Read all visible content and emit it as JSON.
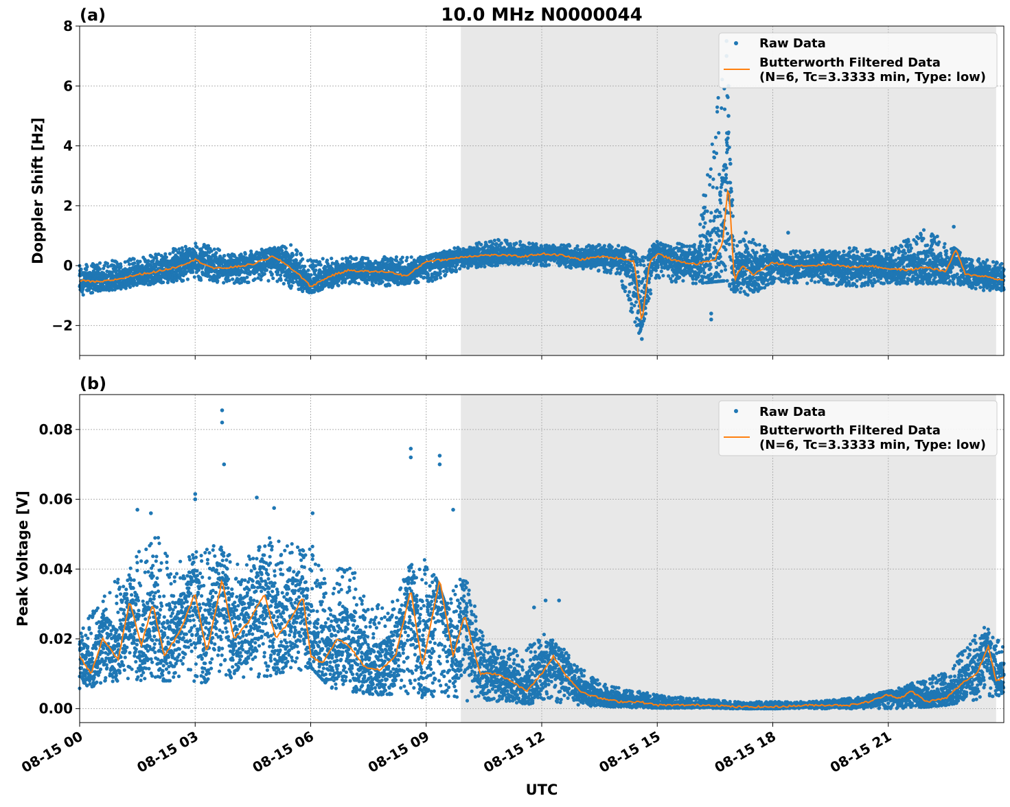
{
  "chart_data": [
    {
      "type": "scatter",
      "panel_label": "(a)",
      "title": "10.0 MHz N0000044",
      "ylabel": "Doppler Shift [Hz]",
      "xlabel": "",
      "xlim_hours": [
        0,
        24
      ],
      "ylim": [
        -3,
        8
      ],
      "yticks": [
        -2,
        0,
        2,
        4,
        6,
        8
      ],
      "ytick_labels": [
        "−2",
        "0",
        "2",
        "4",
        "6",
        "8"
      ],
      "grid": true,
      "legend_position": "top-right",
      "shaded_region_hours": [
        9.9,
        23.8
      ],
      "series": [
        {
          "name": "Raw Data",
          "style": "points",
          "color": "#1f77b4",
          "envelope_hours": [
            0,
            1,
            2,
            3,
            4,
            5,
            5.5,
            6,
            7,
            8,
            9,
            10,
            11,
            12,
            13,
            14,
            14.5,
            15,
            16,
            16.8,
            17,
            17.5,
            18,
            19,
            20,
            21,
            22,
            23,
            24
          ],
          "envelope_low": [
            -1.0,
            -0.8,
            -0.6,
            -0.5,
            -0.6,
            -0.5,
            -0.8,
            -0.9,
            -0.6,
            -0.7,
            -0.6,
            -0.1,
            0.0,
            0.0,
            -0.1,
            -0.3,
            -2.4,
            -0.5,
            -0.6,
            -0.5,
            -1.0,
            -1.0,
            -0.6,
            -0.6,
            -0.7,
            -0.7,
            -0.6,
            -0.7,
            -1.0
          ],
          "envelope_high": [
            0.0,
            0.2,
            0.4,
            0.8,
            0.4,
            0.6,
            0.7,
            0.2,
            0.3,
            0.3,
            0.3,
            0.7,
            0.9,
            0.7,
            0.7,
            0.7,
            0.4,
            0.9,
            0.7,
            7.5,
            0.9,
            1.0,
            0.5,
            0.5,
            0.6,
            0.5,
            1.3,
            0.3,
            0.1
          ],
          "outliers": [
            {
              "x": 14.6,
              "y": -2.45
            },
            {
              "x": 16.8,
              "y": 7.5
            },
            {
              "x": 16.8,
              "y": 7.0
            },
            {
              "x": 16.85,
              "y": 6.0
            },
            {
              "x": 16.85,
              "y": 5.0
            },
            {
              "x": 16.8,
              "y": 4.2
            },
            {
              "x": 16.9,
              "y": 3.4
            },
            {
              "x": 16.4,
              "y": -1.6
            },
            {
              "x": 16.4,
              "y": -1.8
            },
            {
              "x": 17.3,
              "y": 1.1
            },
            {
              "x": 18.4,
              "y": 1.1
            },
            {
              "x": 22.7,
              "y": 1.3
            }
          ]
        },
        {
          "name": "Butterworth Filtered Data\n(N=6, Tc=3.3333 min, Type: low)",
          "style": "line",
          "color": "#ff7f0e",
          "x_hours": [
            0,
            0.5,
            1,
            1.5,
            2,
            2.5,
            3,
            3.5,
            4,
            4.5,
            5,
            5.3,
            5.7,
            6,
            6.5,
            7,
            7.5,
            8,
            8.5,
            9,
            9.5,
            10,
            10.5,
            11,
            11.5,
            12,
            12.5,
            13,
            13.5,
            14,
            14.4,
            14.6,
            14.8,
            15,
            15.5,
            16,
            16.5,
            16.7,
            16.85,
            17,
            17.2,
            17.5,
            18,
            18.5,
            19,
            19.5,
            20,
            20.5,
            21,
            21.5,
            22,
            22.5,
            22.75,
            23,
            23.5,
            24
          ],
          "y": [
            -0.5,
            -0.55,
            -0.45,
            -0.3,
            -0.2,
            -0.05,
            0.2,
            -0.1,
            -0.05,
            0.05,
            0.3,
            0.1,
            -0.3,
            -0.7,
            -0.35,
            -0.15,
            -0.2,
            -0.2,
            -0.35,
            0.15,
            0.2,
            0.3,
            0.35,
            0.35,
            0.3,
            0.4,
            0.35,
            0.2,
            0.3,
            0.25,
            0.15,
            -1.9,
            0.1,
            0.4,
            0.15,
            0.05,
            0.2,
            0.8,
            2.8,
            -0.5,
            0.0,
            -0.3,
            0.1,
            0.0,
            0.0,
            0.05,
            -0.05,
            0.0,
            -0.1,
            -0.15,
            -0.05,
            -0.2,
            0.55,
            -0.3,
            -0.35,
            -0.5
          ]
        }
      ]
    },
    {
      "type": "scatter",
      "panel_label": "(b)",
      "title": "",
      "ylabel": "Peak Voltage [V]",
      "xlabel": "UTC",
      "xlim_hours": [
        0,
        24
      ],
      "xticks_hours": [
        0,
        3,
        6,
        9,
        12,
        15,
        18,
        21
      ],
      "xtick_labels": [
        "08-15 00",
        "08-15 03",
        "08-15 06",
        "08-15 09",
        "08-15 12",
        "08-15 15",
        "08-15 18",
        "08-15 21"
      ],
      "ylim": [
        -0.004,
        0.09
      ],
      "yticks": [
        0.0,
        0.02,
        0.04,
        0.06,
        0.08
      ],
      "ytick_labels": [
        "0.00",
        "0.02",
        "0.04",
        "0.06",
        "0.08"
      ],
      "grid": true,
      "legend_position": "top-right",
      "shaded_region_hours": [
        9.9,
        23.8
      ],
      "series": [
        {
          "name": "Raw Data",
          "style": "points",
          "color": "#1f77b4",
          "envelope_hours": [
            0,
            0.5,
            1,
            1.5,
            2,
            2.5,
            3,
            3.5,
            4,
            4.5,
            5,
            5.5,
            6,
            6.5,
            7,
            7.5,
            8,
            8.5,
            9,
            9.5,
            10,
            10.5,
            11,
            11.5,
            12,
            12.5,
            13,
            13.5,
            14,
            15,
            16,
            17,
            18,
            19,
            20,
            21,
            21.5,
            22,
            22.5,
            23,
            23.5,
            24
          ],
          "envelope_low": [
            0.005,
            0.007,
            0.008,
            0.008,
            0.008,
            0.008,
            0.007,
            0.008,
            0.009,
            0.008,
            0.009,
            0.01,
            0.012,
            0.006,
            0.005,
            0.004,
            0.004,
            0.004,
            0.003,
            0.003,
            0.002,
            0.002,
            0.002,
            0.0015,
            0.001,
            0.001,
            0.0008,
            0.0005,
            0.0003,
            0.0002,
            0.0002,
            0.0,
            0.0,
            0.0,
            0.0,
            0.0,
            0.0,
            0.0005,
            0.001,
            0.002,
            0.003,
            0.004
          ],
          "envelope_high": [
            0.025,
            0.03,
            0.038,
            0.045,
            0.05,
            0.042,
            0.045,
            0.048,
            0.043,
            0.045,
            0.05,
            0.048,
            0.05,
            0.04,
            0.043,
            0.03,
            0.03,
            0.04,
            0.045,
            0.03,
            0.04,
            0.02,
            0.018,
            0.016,
            0.022,
            0.018,
            0.012,
            0.008,
            0.006,
            0.004,
            0.003,
            0.002,
            0.002,
            0.002,
            0.003,
            0.005,
            0.007,
            0.009,
            0.012,
            0.018,
            0.024,
            0.018
          ],
          "outliers": [
            {
              "x": 3.7,
              "y": 0.0855
            },
            {
              "x": 3.7,
              "y": 0.082
            },
            {
              "x": 3.75,
              "y": 0.07
            },
            {
              "x": 8.6,
              "y": 0.0745
            },
            {
              "x": 8.6,
              "y": 0.072
            },
            {
              "x": 9.35,
              "y": 0.0725
            },
            {
              "x": 9.35,
              "y": 0.07
            },
            {
              "x": 3.0,
              "y": 0.0615
            },
            {
              "x": 3.0,
              "y": 0.06
            },
            {
              "x": 4.6,
              "y": 0.0605
            },
            {
              "x": 1.5,
              "y": 0.057
            },
            {
              "x": 1.85,
              "y": 0.056
            },
            {
              "x": 6.05,
              "y": 0.056
            },
            {
              "x": 9.7,
              "y": 0.057
            },
            {
              "x": 5.05,
              "y": 0.0575
            },
            {
              "x": 12.1,
              "y": 0.031
            },
            {
              "x": 12.45,
              "y": 0.031
            },
            {
              "x": 11.8,
              "y": 0.029
            }
          ]
        },
        {
          "name": "Butterworth Filtered Data\n(N=6, Tc=3.3333 min, Type: low)",
          "style": "line",
          "color": "#ff7f0e",
          "x_hours": [
            0,
            0.3,
            0.6,
            1.0,
            1.3,
            1.6,
            1.9,
            2.2,
            2.6,
            3.0,
            3.3,
            3.7,
            4.0,
            4.4,
            4.8,
            5.1,
            5.5,
            5.8,
            6.0,
            6.3,
            6.7,
            7.0,
            7.4,
            7.8,
            8.2,
            8.6,
            8.9,
            9.35,
            9.7,
            10.0,
            10.4,
            10.8,
            11.2,
            11.6,
            12.0,
            12.3,
            12.6,
            13.0,
            13.5,
            14.0,
            14.5,
            15.0,
            15.5,
            16.0,
            16.5,
            17.0,
            17.5,
            18.0,
            19.0,
            20.0,
            20.5,
            21.0,
            21.3,
            21.6,
            22.0,
            22.5,
            23.0,
            23.3,
            23.6,
            23.8,
            24.0
          ],
          "y": [
            0.015,
            0.01,
            0.02,
            0.014,
            0.031,
            0.018,
            0.03,
            0.015,
            0.022,
            0.033,
            0.016,
            0.037,
            0.02,
            0.025,
            0.033,
            0.02,
            0.026,
            0.032,
            0.015,
            0.013,
            0.02,
            0.018,
            0.012,
            0.011,
            0.015,
            0.034,
            0.012,
            0.037,
            0.015,
            0.027,
            0.01,
            0.01,
            0.008,
            0.005,
            0.01,
            0.015,
            0.01,
            0.005,
            0.003,
            0.002,
            0.002,
            0.001,
            0.001,
            0.001,
            0.001,
            0.0005,
            0.0005,
            0.0005,
            0.001,
            0.001,
            0.002,
            0.004,
            0.003,
            0.005,
            0.002,
            0.003,
            0.008,
            0.01,
            0.018,
            0.008,
            0.009
          ]
        }
      ]
    }
  ]
}
